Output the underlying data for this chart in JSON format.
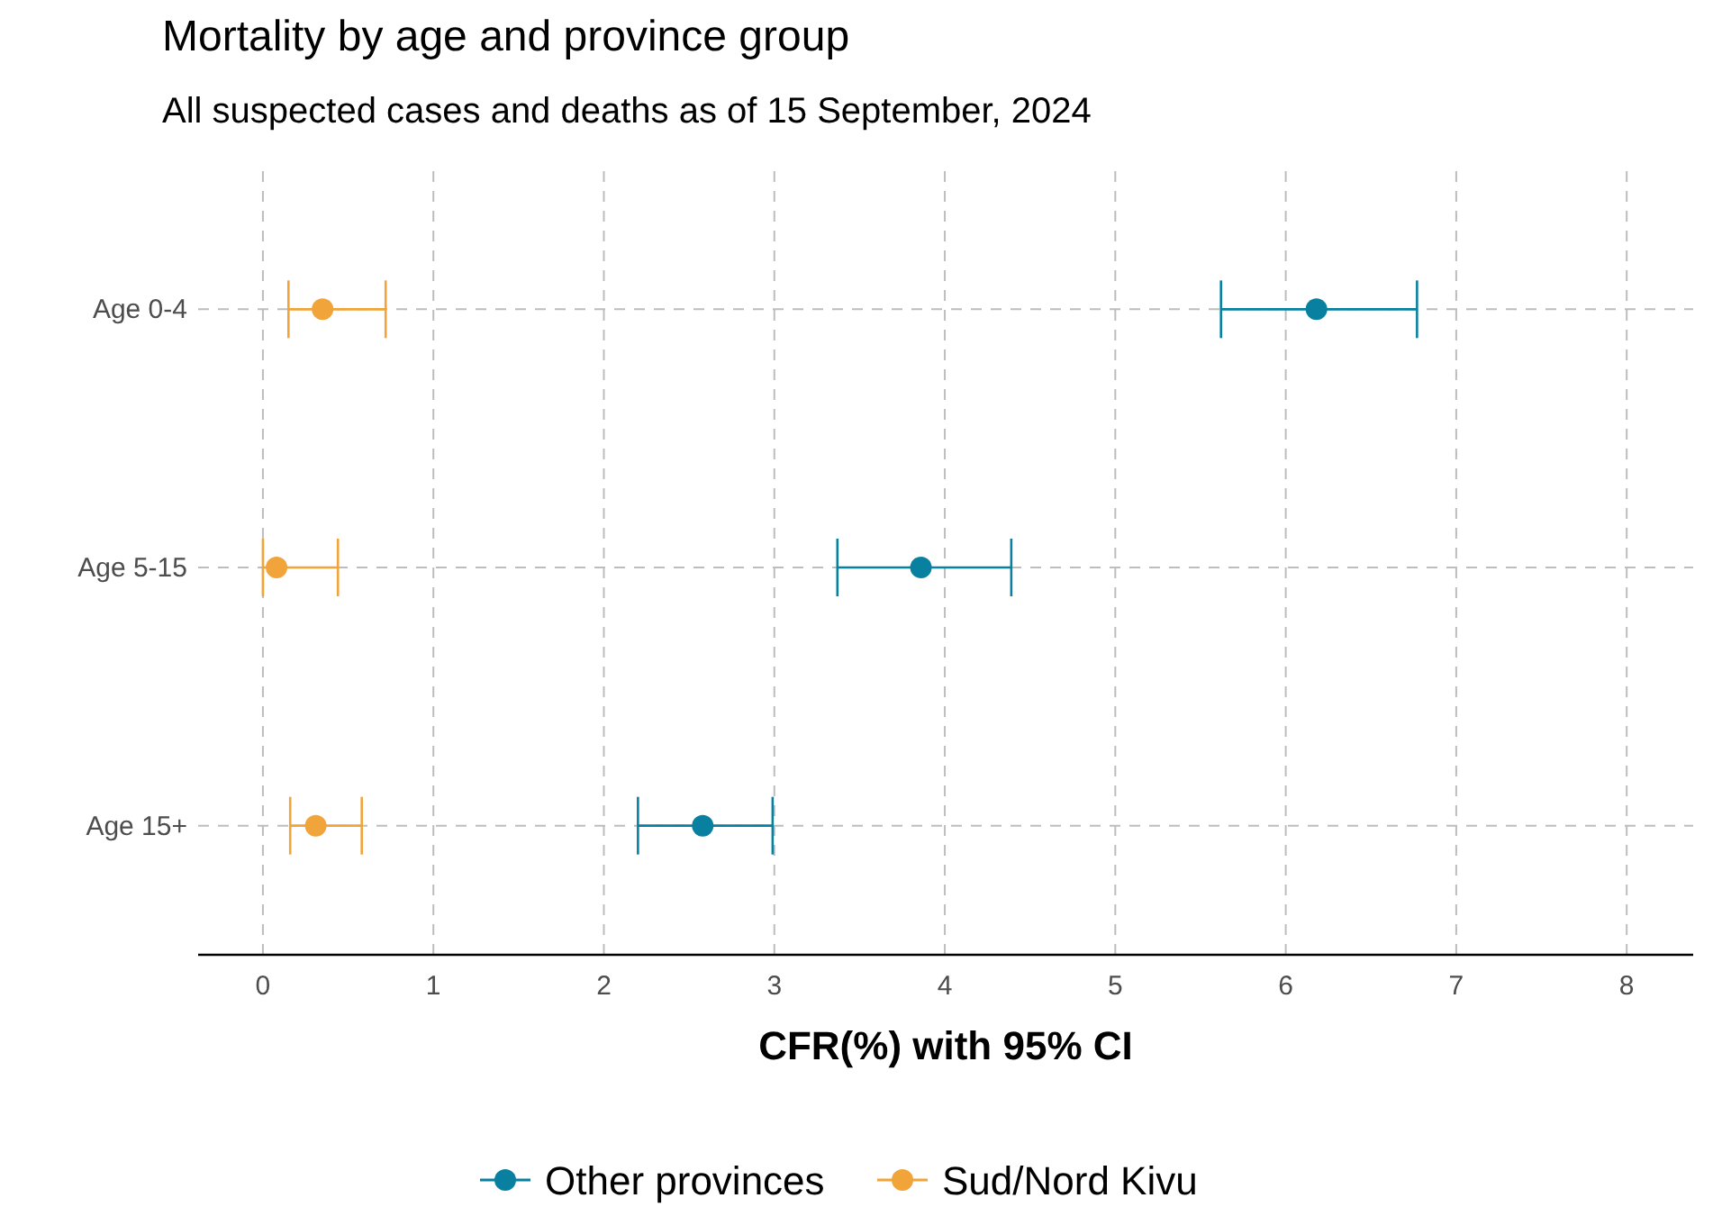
{
  "chart_data": {
    "type": "scatter",
    "orientation": "horizontal",
    "title": "Mortality by age and province group",
    "subtitle": "All suspected cases and deaths as of 15 September, 2024",
    "xlabel": "CFR(%) with 95% CI",
    "categories": [
      "Age 0-4",
      "Age 5-15",
      "Age 15+"
    ],
    "series": [
      {
        "name": "Other provinces",
        "color": "#0a80a0",
        "values": [
          6.18,
          3.86,
          2.58
        ],
        "errors": [
          [
            5.62,
            6.77
          ],
          [
            3.37,
            4.39
          ],
          [
            2.2,
            2.99
          ]
        ]
      },
      {
        "name": "Sud/Nord Kivu",
        "color": "#f0a43a",
        "values": [
          0.35,
          0.08,
          0.31
        ],
        "errors": [
          [
            0.15,
            0.72
          ],
          [
            0.0,
            0.44
          ],
          [
            0.16,
            0.58
          ]
        ]
      }
    ],
    "xlim": [
      -0.38,
      8.39
    ],
    "xticks": [
      0,
      1,
      2,
      3,
      4,
      5,
      6,
      7,
      8
    ],
    "grid": true,
    "legend": "bottom",
    "marker": "circle"
  }
}
